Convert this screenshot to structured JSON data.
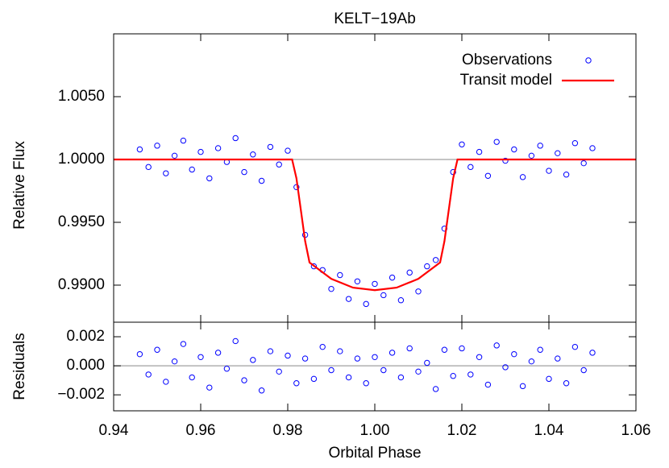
{
  "chart_data": [
    {
      "type": "scatter",
      "title": "KELT−19Ab",
      "ylabel": "Relative Flux",
      "xlim": [
        0.94,
        1.06
      ],
      "ylim": [
        0.98705,
        1.01
      ],
      "yticks": [
        {
          "value": 0.99,
          "label": "0.9900"
        },
        {
          "value": 0.995,
          "label": "0.9950"
        },
        {
          "value": 1.0,
          "label": "1.0000"
        },
        {
          "value": 1.005,
          "label": "1.0050"
        }
      ],
      "reference_line": 1,
      "legend": "upper right",
      "series": [
        {
          "name": "Observations",
          "color": "#0000ff",
          "marker": "circle",
          "x": [
            0.946,
            0.948,
            0.95,
            0.952,
            0.954,
            0.956,
            0.958,
            0.96,
            0.962,
            0.964,
            0.966,
            0.968,
            0.97,
            0.972,
            0.974,
            0.976,
            0.978,
            0.98,
            0.982,
            0.984,
            0.986,
            0.988,
            0.99,
            0.992,
            0.994,
            0.996,
            0.998,
            1.0,
            1.002,
            1.004,
            1.006,
            1.008,
            1.01,
            1.012,
            1.014,
            1.016,
            1.018,
            1.02,
            1.022,
            1.024,
            1.026,
            1.028,
            1.03,
            1.032,
            1.034,
            1.036,
            1.038,
            1.04,
            1.042,
            1.044,
            1.046,
            1.048,
            1.05
          ],
          "values": [
            1.0008,
            0.9994,
            1.0011,
            0.9989,
            1.0003,
            1.0015,
            0.9992,
            1.0006,
            0.9985,
            1.0009,
            0.9998,
            1.0017,
            0.999,
            1.0004,
            0.9983,
            1.001,
            0.9996,
            1.0007,
            0.9978,
            0.994,
            0.9915,
            0.9912,
            0.9897,
            0.9908,
            0.9889,
            0.9903,
            0.9885,
            0.9901,
            0.9892,
            0.9906,
            0.9888,
            0.991,
            0.9895,
            0.9915,
            0.992,
            0.9945,
            0.999,
            1.0012,
            0.9994,
            1.0006,
            0.9987,
            1.0014,
            0.9999,
            1.0008,
            0.9986,
            1.0003,
            1.0011,
            0.9991,
            1.0005,
            0.9988,
            1.0013,
            0.9997,
            1.0009
          ]
        },
        {
          "name": "Transit model",
          "color": "#ff0000",
          "marker": "line",
          "x": [
            0.94,
            0.981,
            0.982,
            0.983,
            0.984,
            0.985,
            0.99,
            0.995,
            1.0,
            1.005,
            1.01,
            1.015,
            1.016,
            1.017,
            1.018,
            1.019,
            1.06
          ],
          "values": [
            1.0,
            1.0,
            0.9985,
            0.996,
            0.9935,
            0.9918,
            0.9905,
            0.9898,
            0.9896,
            0.9898,
            0.9905,
            0.9918,
            0.9935,
            0.996,
            0.9985,
            1.0,
            1.0
          ]
        }
      ]
    },
    {
      "type": "scatter",
      "ylabel": "Residuals",
      "xlabel": "Orbital Phase",
      "xlim": [
        0.94,
        1.06
      ],
      "ylim": [
        -0.0031,
        0.003
      ],
      "xticks": [
        0.94,
        0.96,
        0.98,
        {
          "value": 1.0,
          "label": "1.00"
        },
        1.02,
        1.04,
        1.06
      ],
      "yticks": [
        {
          "value": -0.002,
          "label": "−0.002"
        },
        {
          "value": 0,
          "label": "0.000"
        },
        {
          "value": 0.002,
          "label": "0.002"
        }
      ],
      "reference_line": 0,
      "series": [
        {
          "color": "#0000ff",
          "marker": "circle",
          "x": [
            0.946,
            0.948,
            0.95,
            0.952,
            0.954,
            0.956,
            0.958,
            0.96,
            0.962,
            0.964,
            0.966,
            0.968,
            0.97,
            0.972,
            0.974,
            0.976,
            0.978,
            0.98,
            0.982,
            0.984,
            0.986,
            0.988,
            0.99,
            0.992,
            0.994,
            0.996,
            0.998,
            1.0,
            1.002,
            1.004,
            1.006,
            1.008,
            1.01,
            1.012,
            1.014,
            1.016,
            1.018,
            1.02,
            1.022,
            1.024,
            1.026,
            1.028,
            1.03,
            1.032,
            1.034,
            1.036,
            1.038,
            1.04,
            1.042,
            1.044,
            1.046,
            1.048,
            1.05
          ],
          "values": [
            0.0008,
            -0.0006,
            0.0011,
            -0.0011,
            0.0003,
            0.0015,
            -0.0008,
            0.0006,
            -0.0015,
            0.0009,
            -0.0002,
            0.0017,
            -0.001,
            0.0004,
            -0.0017,
            0.001,
            -0.0004,
            0.0007,
            -0.0012,
            0.0005,
            -0.0009,
            0.0013,
            -0.0003,
            0.001,
            -0.0008,
            0.0005,
            -0.0012,
            0.0006,
            -0.0003,
            0.0009,
            -0.0008,
            0.0012,
            -0.0004,
            0.0002,
            -0.0016,
            0.0011,
            -0.0007,
            0.0012,
            -0.0006,
            0.0006,
            -0.0013,
            0.0014,
            -0.0001,
            0.0008,
            -0.0014,
            0.0003,
            0.0011,
            -0.0009,
            0.0005,
            -0.0012,
            0.0013,
            -0.0003,
            0.0009
          ]
        }
      ]
    }
  ]
}
